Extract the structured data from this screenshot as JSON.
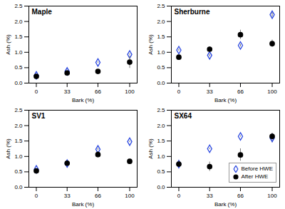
{
  "chart_data": [
    {
      "type": "scatter",
      "title": "Maple",
      "x_label": "Bark (%)",
      "y_label": "Ash (%)",
      "x": [
        0,
        33,
        66,
        100
      ],
      "xlim": [
        -8,
        108
      ],
      "xticks": [
        0,
        33,
        66,
        100
      ],
      "ylim": [
        0,
        2.5
      ],
      "yticks": [
        {
          "value": 0,
          "label": "0.0"
        },
        {
          "value": 0.5,
          "label": "0.5"
        },
        {
          "value": 1,
          "label": "1.0"
        },
        {
          "value": 1.5,
          "label": "1.5"
        },
        {
          "value": 2,
          "label": "2.0"
        },
        {
          "value": 2.5,
          "label": "2.5"
        }
      ],
      "series": [
        {
          "name": "Before HWE",
          "color": "#2b48e0",
          "marker": "diamond-open",
          "values": [
            0.25,
            0.38,
            0.67,
            0.93
          ],
          "errors": [
            0.02,
            0.03,
            0.02,
            0.02
          ]
        },
        {
          "name": "After HWE",
          "color": "#000000",
          "marker": "circle",
          "values": [
            0.22,
            0.33,
            0.38,
            0.68
          ],
          "errors": [
            0.05,
            0.03,
            0.05,
            0.2
          ]
        }
      ]
    },
    {
      "type": "scatter",
      "title": "Sherburne",
      "x_label": "Bark (%)",
      "y_label": "Ash (%)",
      "x": [
        0,
        33,
        66,
        100
      ],
      "xlim": [
        -8,
        108
      ],
      "xticks": [
        0,
        33,
        66,
        100
      ],
      "ylim": [
        0,
        2.5
      ],
      "yticks": [
        {
          "value": 0,
          "label": "0.0"
        },
        {
          "value": 0.5,
          "label": "0.5"
        },
        {
          "value": 1,
          "label": "1.0"
        },
        {
          "value": 1.5,
          "label": "1.5"
        },
        {
          "value": 2,
          "label": "2.0"
        },
        {
          "value": 2.5,
          "label": "2.5"
        }
      ],
      "series": [
        {
          "name": "Before HWE",
          "color": "#2b48e0",
          "marker": "diamond-open",
          "values": [
            1.07,
            0.9,
            1.22,
            2.22
          ],
          "errors": [
            0.03,
            0.04,
            0.04,
            0.07
          ]
        },
        {
          "name": "After HWE",
          "color": "#000000",
          "marker": "circle",
          "values": [
            0.84,
            1.1,
            1.57,
            1.28
          ],
          "errors": [
            0.05,
            0.07,
            0.15,
            0.12
          ]
        }
      ]
    },
    {
      "type": "scatter",
      "title": "SV1",
      "x_label": "Bark (%)",
      "y_label": "Ash (%)",
      "x": [
        0,
        33,
        66,
        100
      ],
      "xlim": [
        -8,
        108
      ],
      "xticks": [
        0,
        33,
        66,
        100
      ],
      "ylim": [
        0,
        2.5
      ],
      "yticks": [
        {
          "value": 0,
          "label": "0.0"
        },
        {
          "value": 0.5,
          "label": "0.5"
        },
        {
          "value": 1,
          "label": "1.0"
        },
        {
          "value": 1.5,
          "label": "1.5"
        },
        {
          "value": 2,
          "label": "2.0"
        },
        {
          "value": 2.5,
          "label": "2.5"
        }
      ],
      "series": [
        {
          "name": "Before HWE",
          "color": "#2b48e0",
          "marker": "diamond-open",
          "values": [
            0.58,
            0.77,
            1.23,
            1.48
          ],
          "errors": [
            0.02,
            0.03,
            0.03,
            0.02
          ]
        },
        {
          "name": "After HWE",
          "color": "#000000",
          "marker": "circle",
          "values": [
            0.53,
            0.78,
            1.06,
            0.84
          ],
          "errors": [
            0.05,
            0.06,
            0.1,
            0.02
          ]
        }
      ]
    },
    {
      "type": "scatter",
      "title": "SX64",
      "x_label": "Bark (%)",
      "y_label": "Ash (%)",
      "legend": "lower right",
      "x": [
        0,
        33,
        66,
        100
      ],
      "xlim": [
        -8,
        108
      ],
      "xticks": [
        0,
        33,
        66,
        100
      ],
      "ylim": [
        0,
        2.5
      ],
      "yticks": [
        {
          "value": 0,
          "label": "0.0"
        },
        {
          "value": 0.5,
          "label": "0.5"
        },
        {
          "value": 1,
          "label": "1.0"
        },
        {
          "value": 1.5,
          "label": "1.5"
        },
        {
          "value": 2,
          "label": "2.0"
        },
        {
          "value": 2.5,
          "label": "2.5"
        }
      ],
      "series": [
        {
          "name": "Before HWE",
          "color": "#2b48e0",
          "marker": "diamond-open",
          "values": [
            0.75,
            1.25,
            1.65,
            1.6
          ],
          "errors": [
            0.03,
            0.02,
            0.02,
            0.15
          ]
        },
        {
          "name": "After HWE",
          "color": "#000000",
          "marker": "circle",
          "values": [
            0.75,
            0.67,
            1.05,
            1.65
          ],
          "errors": [
            0.1,
            0.15,
            0.2,
            0.1
          ]
        }
      ]
    }
  ]
}
